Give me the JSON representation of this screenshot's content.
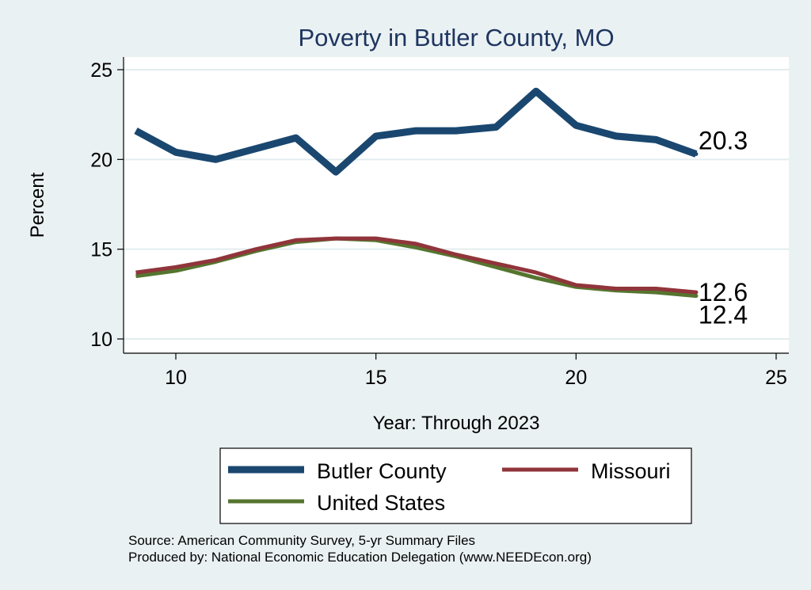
{
  "chart_data": {
    "type": "line",
    "title": "Poverty in Butler County, MO",
    "xlabel": "Year: Through 2023",
    "ylabel": "Percent",
    "xlim": [
      9,
      25
    ],
    "ylim": [
      10,
      25
    ],
    "xticks": [
      10,
      15,
      20,
      25
    ],
    "yticks": [
      10,
      15,
      20,
      25
    ],
    "grid": true,
    "legend_position": "bottom",
    "x": [
      9,
      10,
      11,
      12,
      13,
      14,
      15,
      16,
      17,
      18,
      19,
      20,
      21,
      22,
      23
    ],
    "series": [
      {
        "name": "Butler County",
        "color": "#1a476f",
        "values": [
          21.6,
          20.4,
          20.0,
          20.6,
          21.2,
          19.3,
          21.3,
          21.6,
          21.6,
          21.8,
          23.8,
          21.9,
          21.3,
          21.1,
          20.3
        ],
        "end_label": "20.3"
      },
      {
        "name": "Missouri",
        "color": "#90353b",
        "values": [
          13.7,
          14.0,
          14.4,
          15.0,
          15.5,
          15.6,
          15.6,
          15.3,
          14.7,
          14.2,
          13.7,
          13.0,
          12.8,
          12.8,
          12.6
        ],
        "end_label": "12.6"
      },
      {
        "name": "United States",
        "color": "#55752f",
        "values": [
          13.5,
          13.8,
          14.3,
          14.9,
          15.4,
          15.6,
          15.5,
          15.1,
          14.6,
          14.0,
          13.4,
          12.9,
          12.7,
          12.6,
          12.4
        ],
        "end_label": "12.4"
      }
    ],
    "notes": [
      "Source: American Community Survey, 5-yr Summary Files",
      "Produced by: National Economic Education Delegation (www.NEEDEcon.org)"
    ]
  }
}
